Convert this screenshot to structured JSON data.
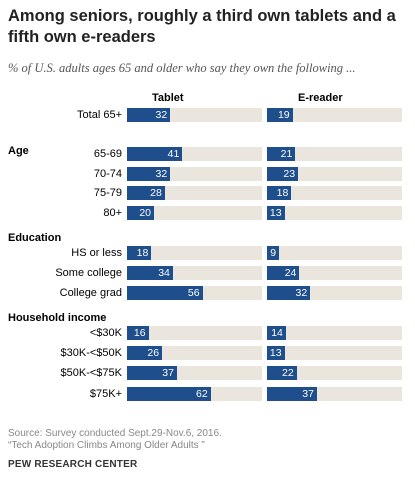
{
  "title": "Among seniors, roughly a third own tablets and a fifth own e-readers",
  "subtitle": "% of U.S. adults ages 65 and older who say they own the following ...",
  "source_line1": "Source: Survey conducted Sept.29-Nov.6, 2016.",
  "source_line2": "“Tech Adoption Climbs Among Older Adults ”",
  "brand": "PEW RESEARCH CENTER",
  "colors": {
    "bar": "#1f4e8c",
    "track": "#eae6dd"
  },
  "chart_data": {
    "type": "bar",
    "orientation": "horizontal",
    "title": "Among seniors, roughly a third own tablets and a fifth own e-readers",
    "series_names": [
      "Tablet",
      "E-reader"
    ],
    "xlim": [
      0,
      100
    ],
    "groups": [
      {
        "name": "",
        "rows": [
          {
            "label": "Total 65+",
            "tablet": 32,
            "ereader": 19
          }
        ]
      },
      {
        "name": "Age",
        "rows": [
          {
            "label": "65-69",
            "tablet": 41,
            "ereader": 21
          },
          {
            "label": "70-74",
            "tablet": 32,
            "ereader": 23
          },
          {
            "label": "75-79",
            "tablet": 28,
            "ereader": 18
          },
          {
            "label": "80+",
            "tablet": 20,
            "ereader": 13
          }
        ]
      },
      {
        "name": "Education",
        "rows": [
          {
            "label": "HS or less",
            "tablet": 18,
            "ereader": 9
          },
          {
            "label": "Some college",
            "tablet": 34,
            "ereader": 24
          },
          {
            "label": "College grad",
            "tablet": 56,
            "ereader": 32
          }
        ]
      },
      {
        "name": "Household income",
        "rows": [
          {
            "label": "<$30K",
            "tablet": 16,
            "ereader": 14
          },
          {
            "label": "$30K-<$50K",
            "tablet": 26,
            "ereader": 13
          },
          {
            "label": "$50K-<$75K",
            "tablet": 37,
            "ereader": 22
          },
          {
            "label": "$75K+",
            "tablet": 62,
            "ereader": 37
          }
        ]
      }
    ]
  }
}
